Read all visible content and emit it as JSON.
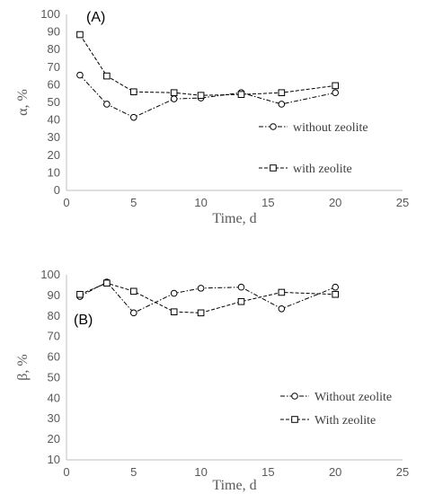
{
  "chart_data": [
    {
      "type": "line",
      "panel_label": "(A)",
      "xlabel": "Time, d",
      "ylabel": "α, %",
      "xlim": [
        0,
        25
      ],
      "ylim": [
        0,
        100
      ],
      "x_ticks": [
        "0",
        "5",
        "10",
        "15",
        "20",
        "25"
      ],
      "y_ticks": [
        "0",
        "10",
        "20",
        "30",
        "40",
        "50",
        "60",
        "70",
        "80",
        "90",
        "100"
      ],
      "grid": "none",
      "legend_position": "right",
      "series": [
        {
          "name": "without zeolite",
          "marker": "circle",
          "line_style": "dash-dot",
          "x": [
            1,
            3,
            5,
            8,
            10,
            13,
            16,
            20
          ],
          "y": [
            65.5,
            49,
            41.5,
            52,
            52.5,
            55.5,
            49,
            55.5
          ]
        },
        {
          "name": "with zeolite",
          "marker": "square",
          "line_style": "dash",
          "x": [
            1,
            3,
            5,
            8,
            10,
            13,
            16,
            20
          ],
          "y": [
            88.5,
            65,
            56,
            55.5,
            54,
            54.5,
            55.5,
            59.5
          ]
        }
      ]
    },
    {
      "type": "line",
      "panel_label": "(B)",
      "xlabel": "Time, d",
      "ylabel": "β, %",
      "xlim": [
        0,
        25
      ],
      "ylim": [
        10,
        100
      ],
      "x_ticks": [
        "0",
        "5",
        "10",
        "15",
        "20",
        "25"
      ],
      "y_ticks": [
        "10",
        "20",
        "30",
        "40",
        "50",
        "60",
        "70",
        "80",
        "90",
        "100"
      ],
      "grid": "none",
      "legend_position": "right",
      "series": [
        {
          "name": "Without zeolite",
          "marker": "circle",
          "line_style": "dash-dot",
          "x": [
            1,
            3,
            5,
            8,
            10,
            13,
            16,
            20
          ],
          "y": [
            89.5,
            96.5,
            81.5,
            91,
            93.5,
            94,
            83.5,
            94
          ]
        },
        {
          "name": "With zeolite",
          "marker": "square",
          "line_style": "dash",
          "x": [
            1,
            3,
            5,
            8,
            10,
            13,
            16,
            20
          ],
          "y": [
            90.5,
            96,
            92,
            82,
            81.5,
            87,
            91.5,
            90.5
          ]
        }
      ]
    }
  ]
}
